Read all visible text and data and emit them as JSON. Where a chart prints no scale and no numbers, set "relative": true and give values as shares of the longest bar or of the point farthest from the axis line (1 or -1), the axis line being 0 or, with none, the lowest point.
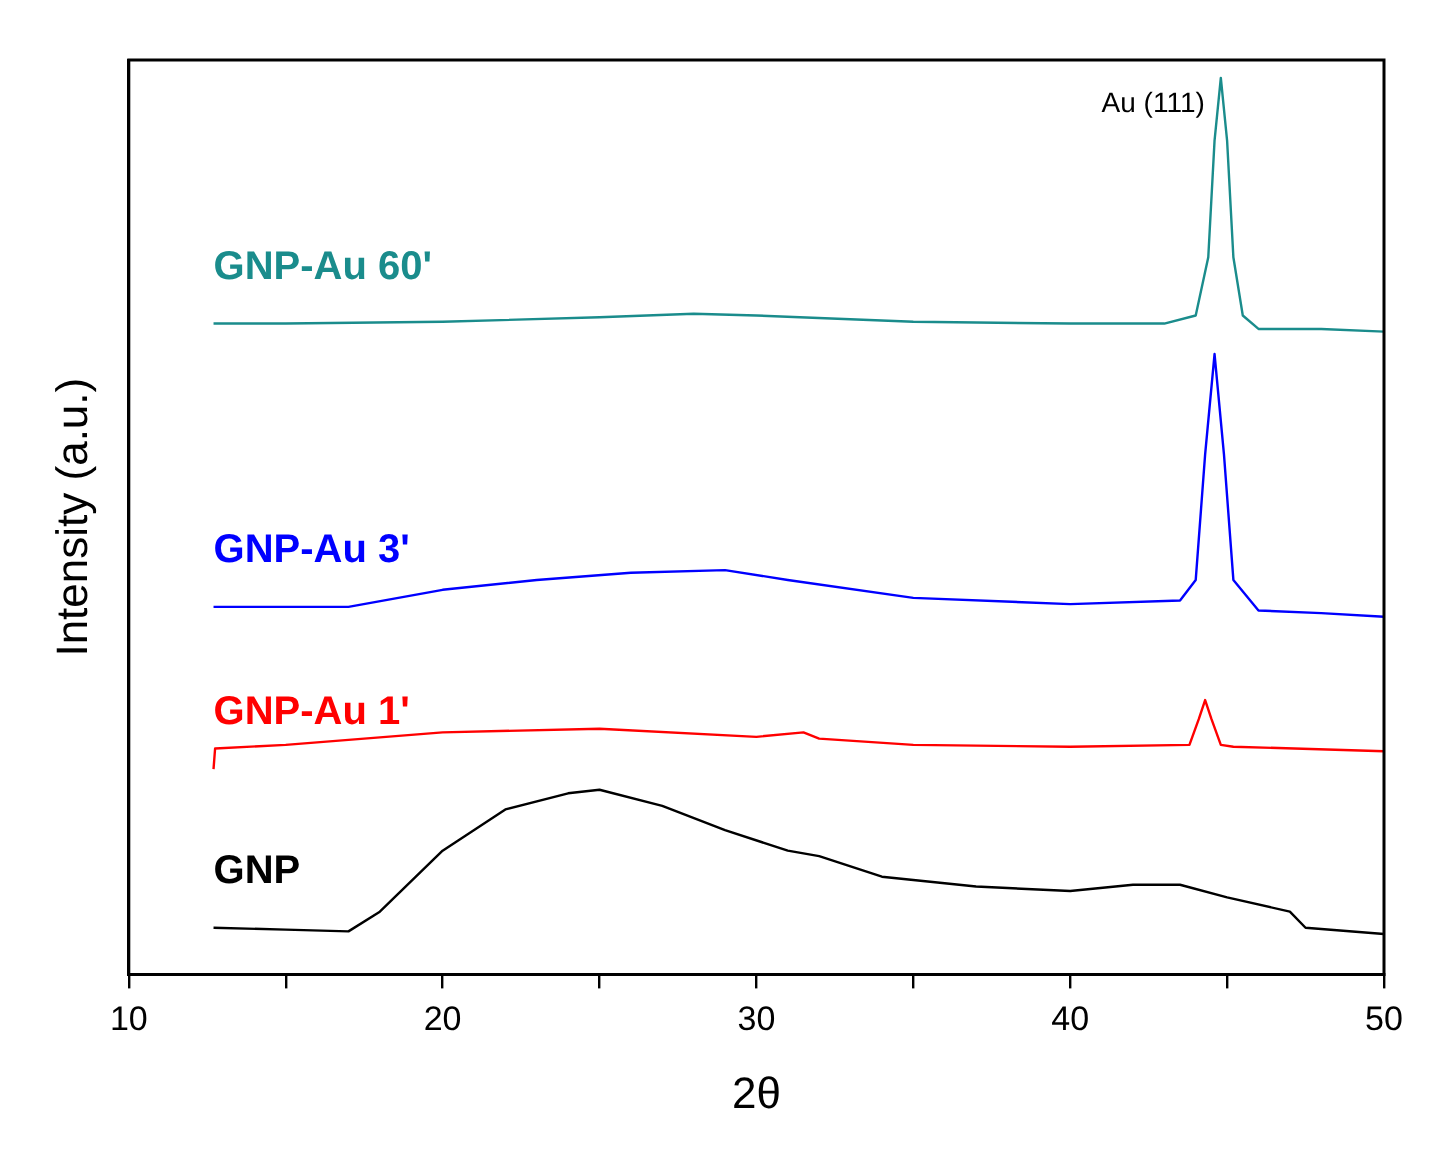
{
  "chart_data": {
    "type": "line",
    "relative": true,
    "xlabel": "2θ",
    "ylabel": "Intensity (a.u.)",
    "xlim": [
      10,
      50
    ],
    "xticks": [
      10,
      {
        "value": 15,
        "label": null
      },
      20,
      {
        "value": 25,
        "label": null
      },
      30,
      {
        "value": 35,
        "label": null
      },
      40,
      {
        "value": 45,
        "label": null
      },
      50
    ],
    "grid": false,
    "legend": false,
    "marker": "none",
    "line_style": "solid",
    "tick_labels": "x",
    "annotations": [
      {
        "text": "Au (111)",
        "x": 44.8,
        "y": 1
      }
    ],
    "series": [
      {
        "name": "GNP-Au 60'",
        "color": "#1a8c8c",
        "x": [
          12.7,
          15,
          20,
          25,
          28,
          30,
          35,
          40,
          43,
          44,
          44.4,
          44.6,
          44.8,
          45,
          45.2,
          45.5,
          46,
          48,
          50
        ],
        "values": [
          0.726,
          0.726,
          0.728,
          0.733,
          0.737,
          0.735,
          0.728,
          0.726,
          0.726,
          0.735,
          0.8,
          0.93,
          1,
          0.93,
          0.8,
          0.735,
          0.72,
          0.72,
          0.717
        ]
      },
      {
        "name": "GNP-Au 3'",
        "color": "#0000ff",
        "x": [
          12.7,
          15,
          17,
          20,
          23,
          26,
          29,
          31,
          35,
          40,
          43.5,
          44,
          44.3,
          44.6,
          44.9,
          45.2,
          46,
          48,
          50
        ],
        "values": [
          0.41,
          0.41,
          0.41,
          0.429,
          0.44,
          0.448,
          0.451,
          0.44,
          0.42,
          0.413,
          0.417,
          0.44,
          0.58,
          0.692,
          0.58,
          0.44,
          0.406,
          0.403,
          0.399
        ]
      },
      {
        "name": "GNP-Au 1'",
        "color": "#ff0000",
        "x": [
          12.7,
          12.75,
          15,
          20,
          25,
          30,
          31.5,
          32,
          35,
          40,
          43.8,
          44.1,
          44.3,
          44.5,
          44.8,
          45.2,
          50
        ],
        "values": [
          0.229,
          0.252,
          0.256,
          0.27,
          0.274,
          0.265,
          0.27,
          0.263,
          0.256,
          0.254,
          0.256,
          0.285,
          0.306,
          0.285,
          0.256,
          0.254,
          0.249
        ]
      },
      {
        "name": "GNP",
        "color": "#000000",
        "x": [
          12.7,
          15,
          17,
          18,
          20,
          22,
          24,
          25,
          27,
          29,
          31,
          32,
          34,
          37,
          40,
          42,
          43.5,
          45,
          47,
          47.5,
          50
        ],
        "values": [
          0.052,
          0.05,
          0.048,
          0.07,
          0.138,
          0.184,
          0.202,
          0.206,
          0.188,
          0.161,
          0.138,
          0.132,
          0.109,
          0.098,
          0.093,
          0.1,
          0.1,
          0.086,
          0.07,
          0.052,
          0.045
        ]
      }
    ]
  }
}
